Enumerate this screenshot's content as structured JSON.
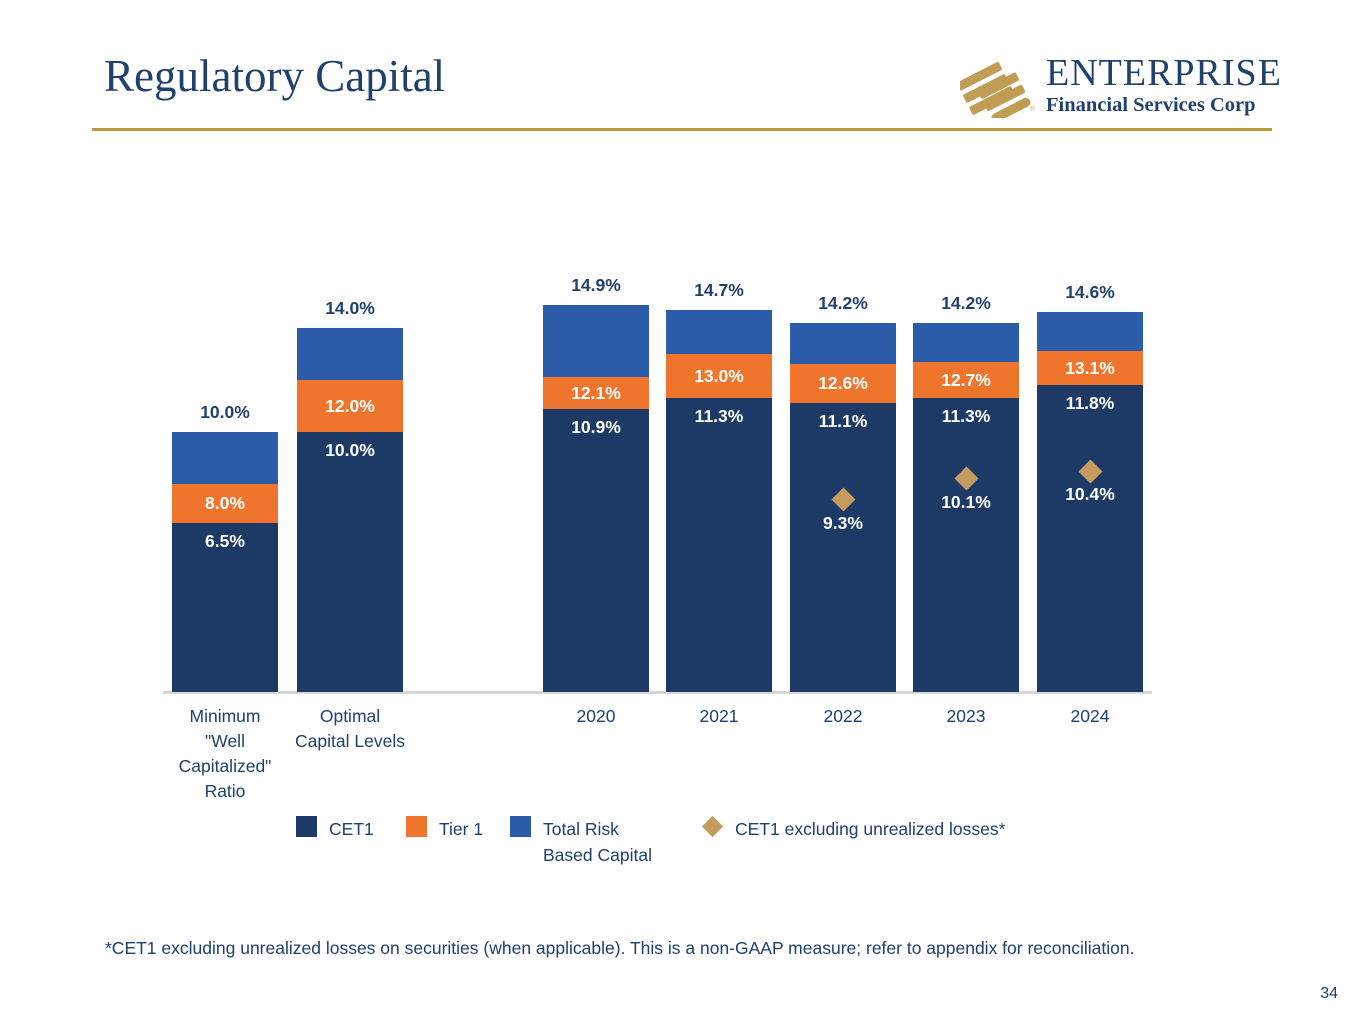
{
  "slide": {
    "title": "Regulatory Capital",
    "page_number": "34",
    "footnote": "*CET1 excluding unrealized losses on securities (when applicable). This is a non-GAAP measure; refer to appendix for reconciliation."
  },
  "logo": {
    "name": "ENTERPRISE",
    "subtitle": "Financial Services Corp",
    "registered": "®"
  },
  "colors": {
    "cet1_navy": "#1d3a67",
    "tier1_orange": "#f0752c",
    "trbc_blue": "#2a5caa",
    "marker_gold": "#c69c5e",
    "title_navy": "#20406e",
    "rule_gold": "#bd9839",
    "logo_gold": "#bf9d55",
    "axis_gray": "#d6d6d6",
    "label_white": "#ffffff"
  },
  "legend": [
    {
      "label": "CET1",
      "swatch": "square",
      "color_key": "cet1_navy"
    },
    {
      "label": "Tier 1",
      "swatch": "square",
      "color_key": "tier1_orange"
    },
    {
      "label": "Total Risk Based Capital",
      "swatch": "square",
      "color_key": "trbc_blue"
    },
    {
      "label": "CET1 excluding unrealized losses*",
      "swatch": "diamond",
      "color_key": "marker_gold"
    }
  ],
  "chart_data": {
    "type": "bar",
    "subtype": "stacked-cumulative",
    "unit": "percent",
    "title": "Regulatory Capital",
    "series_note": "Values are cumulative capital ratios: CET1 <= Tier 1 <= Total Risk Based Capital; gold diamond = CET1 excluding unrealized losses",
    "ylim": [
      0,
      16
    ],
    "grid": false,
    "legend_position": "bottom",
    "categories": [
      {
        "label": "Minimum \"Well Capitalized\" Ratio",
        "cet1": 6.5,
        "tier1": 8.0,
        "total": 10.0,
        "labels": {
          "cet1": "6.5%",
          "tier1": "8.0%",
          "total": "10.0%"
        }
      },
      {
        "label": "Optimal Capital Levels",
        "cet1": 10.0,
        "tier1": 12.0,
        "total": 14.0,
        "labels": {
          "cet1": "10.0%",
          "tier1": "12.0%",
          "total": "14.0%"
        }
      },
      {
        "label": "2020",
        "cet1": 10.9,
        "tier1": 12.1,
        "total": 14.9,
        "labels": {
          "cet1": "10.9%",
          "tier1": "12.1%",
          "total": "14.9%"
        }
      },
      {
        "label": "2021",
        "cet1": 11.3,
        "tier1": 13.0,
        "total": 14.7,
        "labels": {
          "cet1": "11.3%",
          "tier1": "13.0%",
          "total": "14.7%"
        }
      },
      {
        "label": "2022",
        "cet1": 11.1,
        "tier1": 12.6,
        "total": 14.2,
        "marker": 9.3,
        "labels": {
          "cet1": "11.1%",
          "tier1": "12.6%",
          "total": "14.2%",
          "marker": "9.3%"
        }
      },
      {
        "label": "2023",
        "cet1": 11.3,
        "tier1": 12.7,
        "total": 14.2,
        "marker": 10.1,
        "labels": {
          "cet1": "11.3%",
          "tier1": "12.7%",
          "total": "14.2%",
          "marker": "10.1%"
        }
      },
      {
        "label": "2024",
        "cet1": 11.8,
        "tier1": 13.1,
        "total": 14.6,
        "marker": 10.4,
        "labels": {
          "cet1": "11.8%",
          "tier1": "13.1%",
          "total": "14.6%",
          "marker": "10.4%"
        }
      }
    ]
  }
}
